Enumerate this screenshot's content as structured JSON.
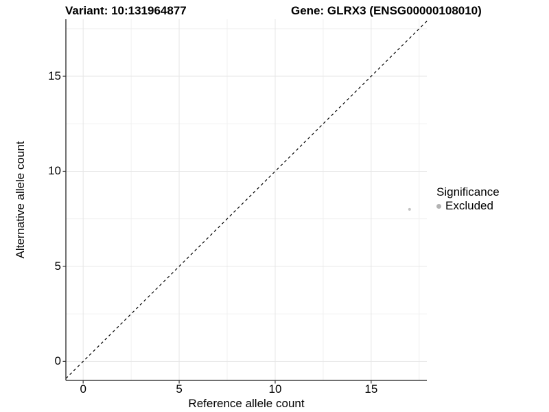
{
  "titles": {
    "variant": "Variant: 10:131964877",
    "gene": "Gene: GLRX3 (ENSG00000108010)"
  },
  "axes": {
    "x": {
      "label": "Reference allele count",
      "ticks": [
        0,
        5,
        10,
        15
      ]
    },
    "y": {
      "label": "Alternative allele count",
      "ticks": [
        0,
        5,
        10,
        15
      ]
    }
  },
  "legend": {
    "title": "Significance",
    "items": [
      {
        "label": "Excluded",
        "color": "#b3b3b3"
      }
    ]
  },
  "chart_data": {
    "type": "scatter",
    "title": "Variant: 10:131964877 | Gene: GLRX3 (ENSG00000108010)",
    "xlabel": "Reference allele count",
    "ylabel": "Alternative allele count",
    "xlim": [
      -0.9,
      17.9
    ],
    "ylim": [
      -1.0,
      18.0
    ],
    "x_major_ticks": [
      0,
      5,
      10,
      15
    ],
    "y_major_ticks": [
      0,
      5,
      10,
      15
    ],
    "x_minor_ticks": [
      2.5,
      7.5,
      12.5,
      17.5
    ],
    "y_minor_ticks": [
      2.5,
      7.5,
      12.5,
      17.5
    ],
    "grid": true,
    "legend_position": "right",
    "series": [
      {
        "name": "Excluded",
        "points": [
          {
            "x": 17,
            "y": 8
          }
        ],
        "color": "#c3c3c3",
        "point_radius": 2
      }
    ],
    "reference_line": {
      "type": "identity",
      "style": "dashed",
      "color": "#000000",
      "from": [
        -0.9,
        -0.9
      ],
      "to": [
        17.9,
        17.9
      ]
    },
    "colors": {
      "grid_major": "#e6e6e6",
      "grid_minor": "#f0f0f0",
      "axis_line": "#404040",
      "tick_mark": "#333333"
    }
  }
}
